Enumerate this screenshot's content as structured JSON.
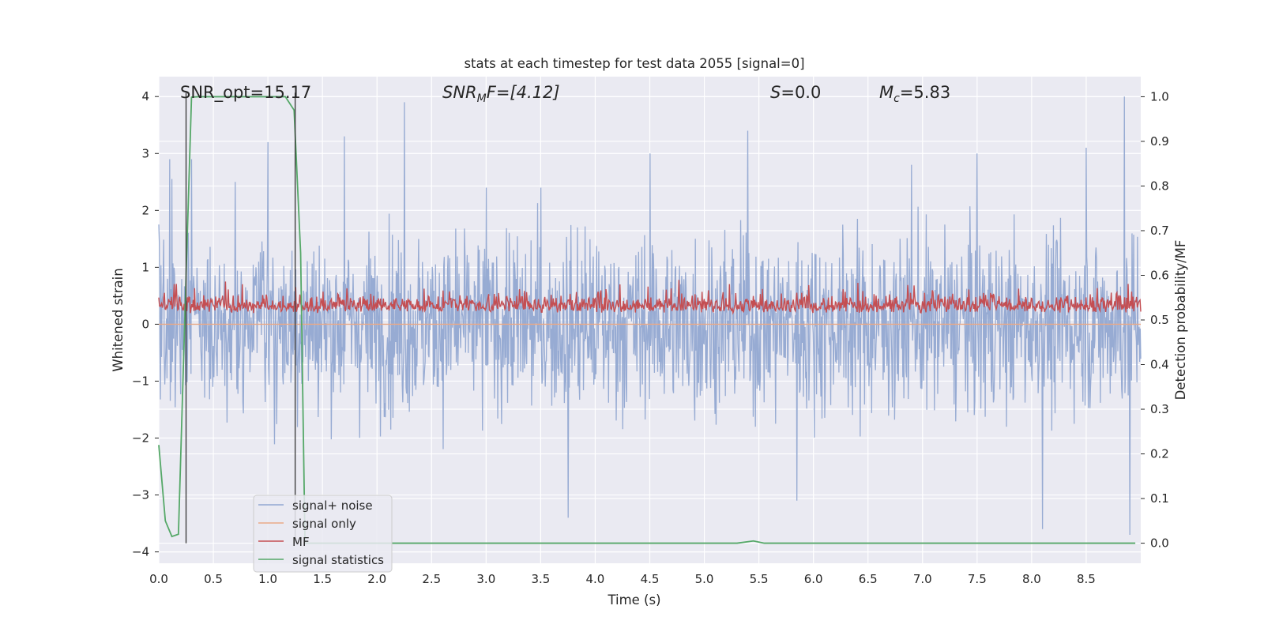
{
  "chart_data": {
    "type": "line",
    "title": "stats at each timestep for test data 2055 [signal=0]",
    "xlabel": "Time (s)",
    "ylabel": "Whitened strain",
    "y2label": "Detection probability/MF",
    "xlim": [
      0.0,
      9.0
    ],
    "ylim": [
      -4.2,
      4.35
    ],
    "y2lim": [
      -0.045,
      1.045
    ],
    "xticks": [
      "0.0",
      "0.5",
      "1.0",
      "1.5",
      "2.0",
      "2.5",
      "3.0",
      "3.5",
      "4.0",
      "4.5",
      "5.0",
      "5.5",
      "6.0",
      "6.5",
      "7.0",
      "7.5",
      "8.0",
      "8.5"
    ],
    "yticks": [
      "4",
      "3",
      "2",
      "1",
      "0",
      "−1",
      "−2",
      "−3",
      "−4"
    ],
    "y2ticks": [
      "1.0",
      "0.9",
      "0.8",
      "0.7",
      "0.6",
      "0.5",
      "0.4",
      "0.3",
      "0.2",
      "0.1",
      "0.0"
    ],
    "grid": true,
    "legend_position": "lower-left",
    "annotations": {
      "snr_opt": "SNR_opt=15.17",
      "snr_mf": {
        "main": "SNR",
        "sub": "M",
        "rest": "F=[4.12]"
      },
      "s": {
        "main": "S",
        "rest": "=0.0"
      },
      "mc": {
        "main": "M",
        "sub": "c",
        "rest": "=5.83"
      }
    },
    "vertical_lines_x": [
      0.25,
      1.25
    ],
    "series": [
      {
        "name": "signal+ noise",
        "axis": "left",
        "color": "#92a8d1",
        "description": "whitened strain noise, samples within about -3.4..4.0",
        "peaks_x": [
          0.1,
          0.3,
          0.7,
          1.0,
          1.7,
          2.25,
          3.0,
          3.5,
          3.75,
          4.5,
          5.4,
          5.85,
          6.9,
          7.5,
          8.5,
          8.85,
          8.1,
          8.9
        ],
        "peaks_y": [
          2.9,
          2.9,
          2.5,
          3.2,
          3.3,
          3.9,
          2.4,
          2.4,
          -3.4,
          3.0,
          3.4,
          -3.1,
          2.8,
          3.0,
          3.1,
          4.0,
          -3.6,
          -3.7
        ]
      },
      {
        "name": "signal only",
        "axis": "left",
        "color": "#e9a987",
        "values": "all zero"
      },
      {
        "name": "MF",
        "axis": "right",
        "color": "#c44e52",
        "description": "matched filter output fluctuating between about 0.50 and 0.59"
      },
      {
        "name": "signal statistics",
        "axis": "right",
        "color": "#55a868",
        "x": [
          0.0,
          0.06,
          0.12,
          0.18,
          0.25,
          0.3,
          0.36,
          0.5,
          1.0,
          1.16,
          1.24,
          1.3,
          1.34,
          1.45,
          2.0,
          3.0,
          4.0,
          5.0,
          5.3,
          5.45,
          5.55,
          6.0,
          7.0,
          8.0,
          8.95
        ],
        "y": [
          0.22,
          0.05,
          0.015,
          0.02,
          0.6,
          0.999,
          1.0,
          1.0,
          1.0,
          1.0,
          0.97,
          0.65,
          0.0,
          0.0,
          0.0,
          0.0,
          0.0,
          0.0,
          0.0,
          0.005,
          0.0,
          0.0,
          0.0,
          0.0,
          0.0
        ]
      }
    ]
  },
  "legend": {
    "items": [
      {
        "label": "signal+ noise",
        "color": "#92a8d1"
      },
      {
        "label": "signal only",
        "color": "#e9a987"
      },
      {
        "label": "MF",
        "color": "#c44e52"
      },
      {
        "label": "signal statistics",
        "color": "#55a868"
      }
    ]
  },
  "colors": {
    "axes_bg": "#eaeaf2",
    "grid": "#ffffff",
    "text": "#262626",
    "vline": "#404040"
  }
}
